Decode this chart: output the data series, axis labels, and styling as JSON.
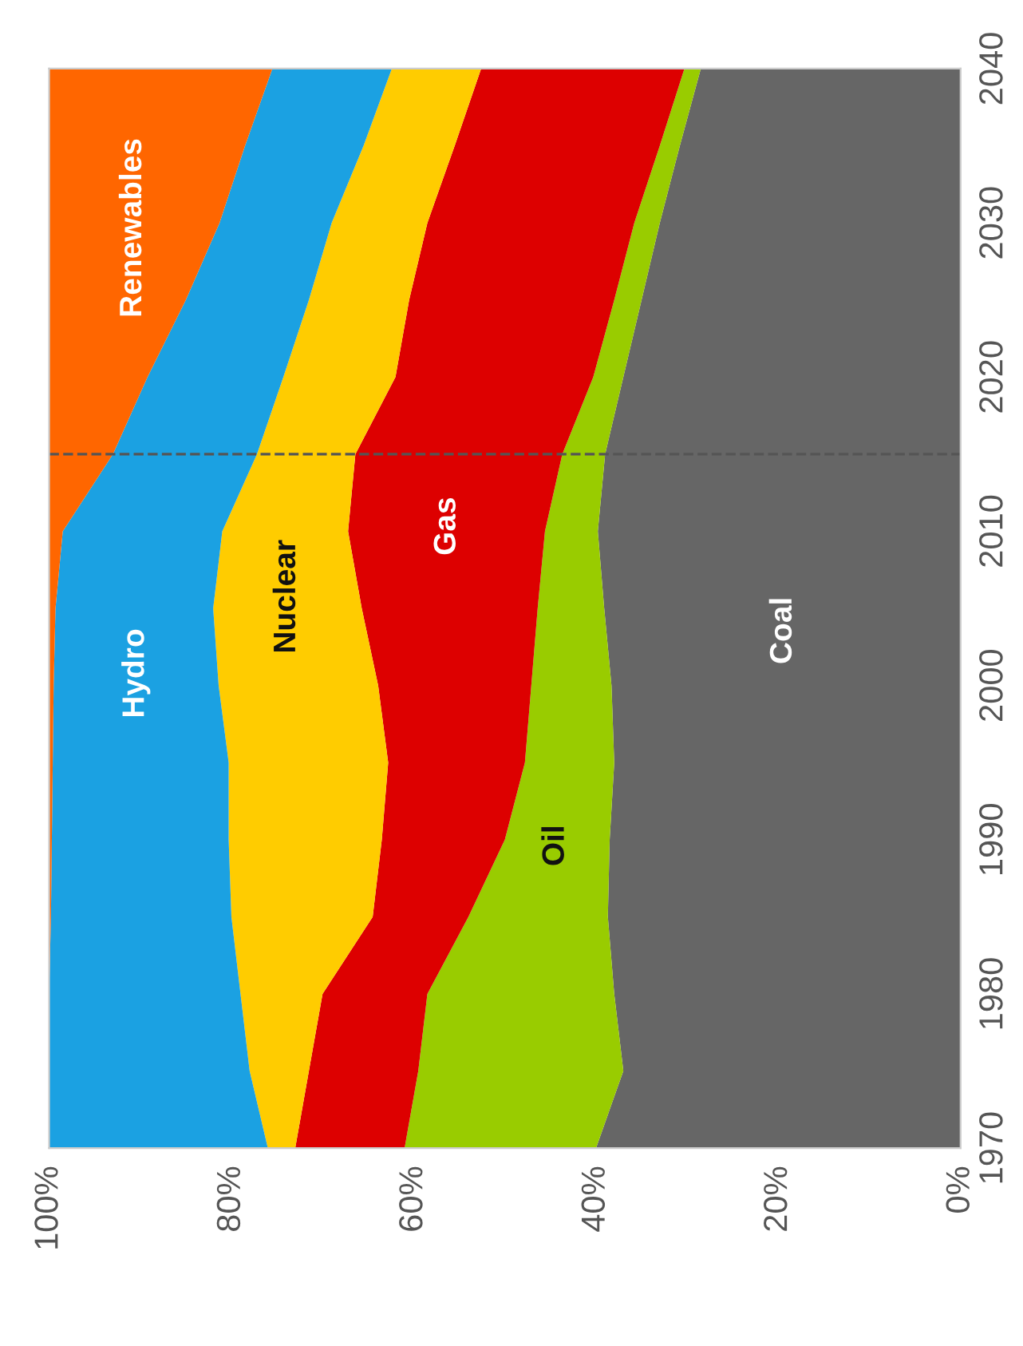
{
  "chart_data": {
    "type": "area",
    "stacked": true,
    "orientation": "horizontal",
    "x": [
      1970,
      1975,
      1980,
      1985,
      1990,
      1995,
      2000,
      2005,
      2010,
      2015,
      2020,
      2025,
      2030,
      2035,
      2040
    ],
    "series": [
      {
        "name": "Coal",
        "color": "#666666",
        "values": [
          40,
          37,
          38,
          38.7,
          38.5,
          38,
          38.3,
          39.1,
          39.8,
          39,
          37,
          35,
          33,
          30.8,
          28.5
        ]
      },
      {
        "name": "Oil",
        "color": "#99cc00",
        "values": [
          21,
          22.5,
          20.5,
          15.3,
          11.5,
          9.8,
          8.8,
          7.3,
          5.8,
          4.7,
          3.3,
          3,
          2.8,
          2.2,
          1.8
        ]
      },
      {
        "name": "Gas",
        "color": "#dd0000",
        "values": [
          12,
          12,
          11.5,
          10.5,
          13.5,
          15,
          16.8,
          19.3,
          21.6,
          22.7,
          21.7,
          22.5,
          22.7,
          22.5,
          22.3
        ]
      },
      {
        "name": "Nuclear",
        "color": "#ffcc00",
        "values": [
          3,
          6.5,
          9,
          15.5,
          16.8,
          17.5,
          17.5,
          16.3,
          13.8,
          10.8,
          12.3,
          11,
          10.5,
          10,
          9.8
        ]
      },
      {
        "name": "Hydro",
        "color": "#1ba1e2",
        "values": [
          24,
          22,
          21,
          19.8,
          19.4,
          19.3,
          18.1,
          17.3,
          17.5,
          15.8,
          14.9,
          13.5,
          12.3,
          13,
          13.1
        ]
      },
      {
        "name": "Renewables",
        "color": "#ff6600",
        "values": [
          0,
          0,
          0,
          0.2,
          0.3,
          0.4,
          0.5,
          0.7,
          1.5,
          7,
          10.8,
          15,
          18.7,
          21.5,
          24.5
        ]
      }
    ],
    "xlim": [
      100,
      0
    ],
    "xticks": [
      {
        "value": 100,
        "label": "100%"
      },
      {
        "value": 80,
        "label": "80%"
      },
      {
        "value": 60,
        "label": "60%"
      },
      {
        "value": 40,
        "label": "40%"
      },
      {
        "value": 20,
        "label": "20%"
      },
      {
        "value": 0,
        "label": "0%"
      }
    ],
    "ylim": [
      1970,
      2040
    ],
    "yticks": [
      1970,
      1980,
      1990,
      2000,
      2010,
      2020,
      2030,
      2040
    ],
    "ref_lines": [
      {
        "axis": "y",
        "value": 2015,
        "color": "#555555",
        "line_style": "dashed"
      }
    ]
  }
}
